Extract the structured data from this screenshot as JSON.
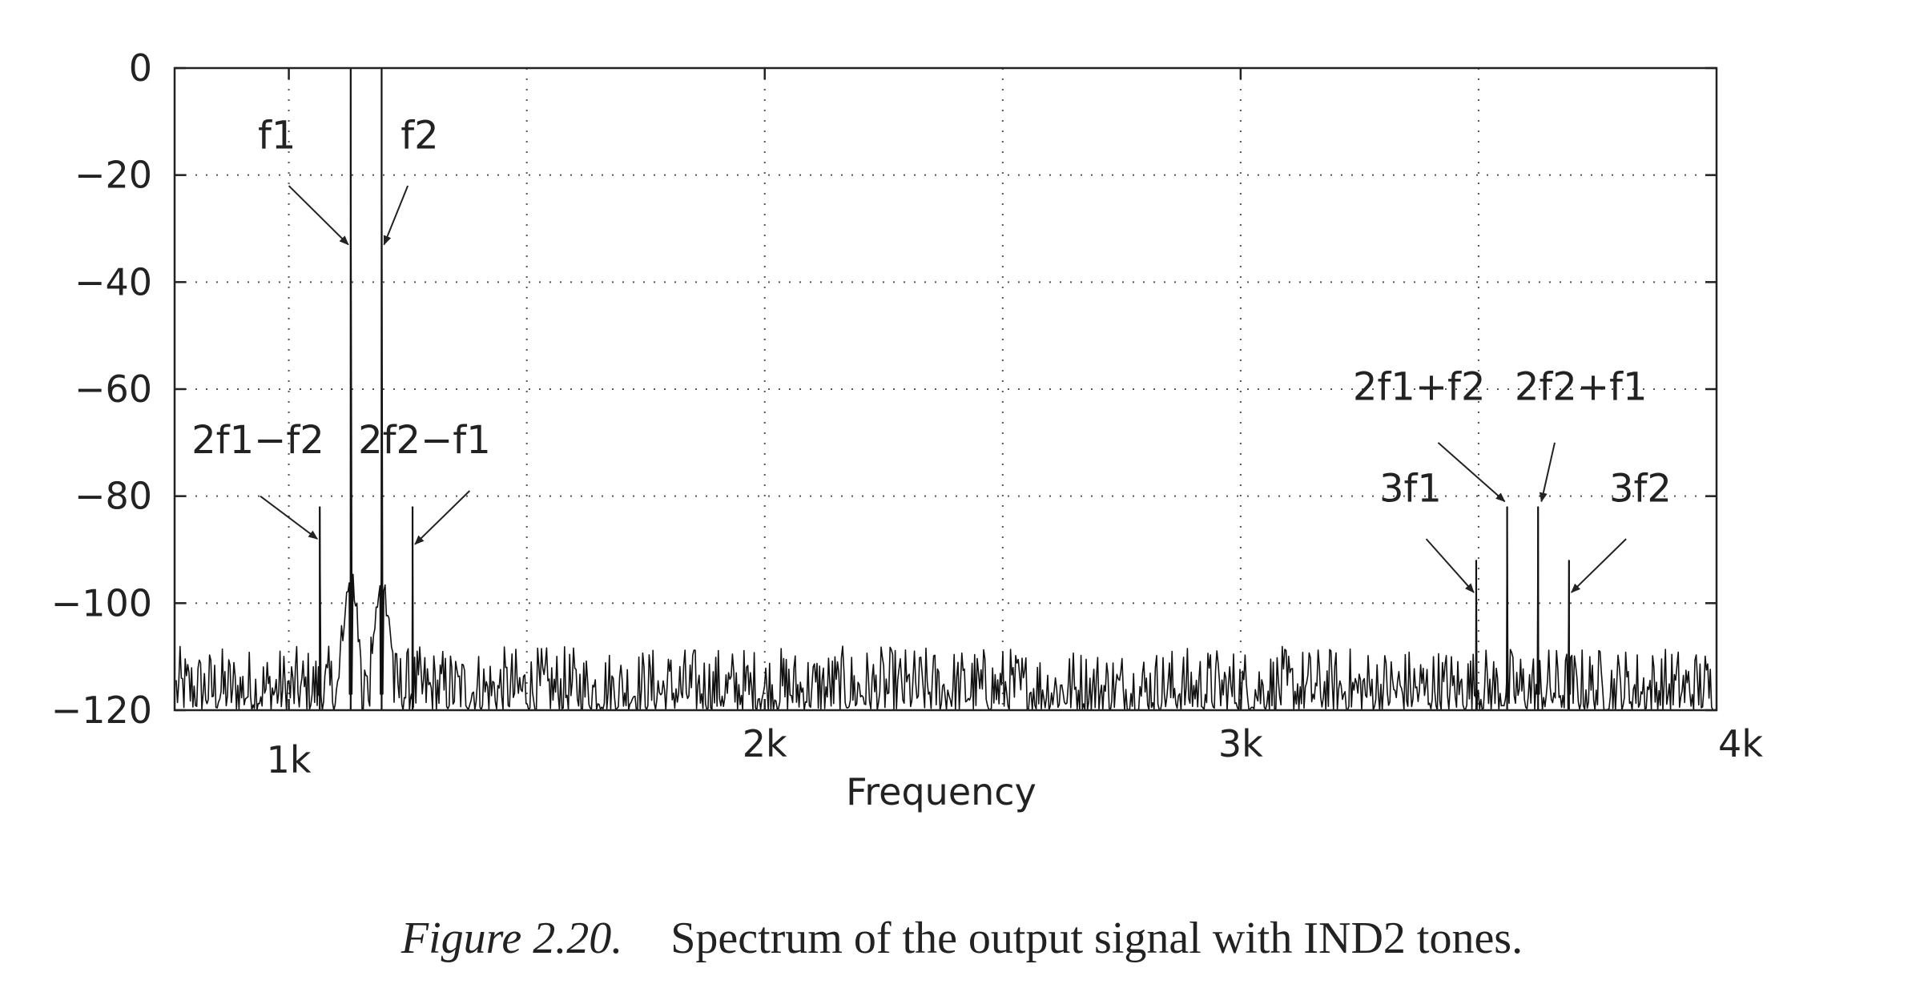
{
  "chart_data": {
    "type": "line",
    "xlabel": "Frequency",
    "ylabel": "",
    "title": "",
    "xlim": [
      760,
      4000
    ],
    "ylim": [
      -120,
      0
    ],
    "x_ticks": [
      {
        "value": 1000,
        "label": "1k"
      },
      {
        "value": 2000,
        "label": "2k"
      },
      {
        "value": 3000,
        "label": "3k"
      },
      {
        "value": 4000,
        "label": "4k"
      }
    ],
    "y_ticks": [
      {
        "value": 0,
        "label": "0"
      },
      {
        "value": -20,
        "label": "−20"
      },
      {
        "value": -40,
        "label": "−40"
      },
      {
        "value": -60,
        "label": "−60"
      },
      {
        "value": -80,
        "label": "−80"
      },
      {
        "value": -100,
        "label": "−100"
      },
      {
        "value": -120,
        "label": "−120"
      }
    ],
    "grid": true,
    "grid_x": [
      1000,
      1500,
      2000,
      2500,
      3000,
      3500
    ],
    "noise_floor_db": -120,
    "noise_peak_db": -108,
    "peaks": [
      {
        "label": "2f1−f2",
        "x": 1065,
        "y": -82
      },
      {
        "label": "f1",
        "x": 1130,
        "y": 0
      },
      {
        "label": "f2",
        "x": 1195,
        "y": 0
      },
      {
        "label": "2f2−f1",
        "x": 1260,
        "y": -82
      },
      {
        "label": "3f1",
        "x": 3495,
        "y": -92
      },
      {
        "label": "2f1+f2",
        "x": 3560,
        "y": -82
      },
      {
        "label": "2f2+f1",
        "x": 3625,
        "y": -82
      },
      {
        "label": "3f2",
        "x": 3690,
        "y": -92
      }
    ]
  },
  "annotations": [
    {
      "text": "f1",
      "tx": 975,
      "ty": -15,
      "ax": 1000,
      "ay": -22,
      "bx": 1125,
      "by": -33
    },
    {
      "text": "f2",
      "tx": 1275,
      "ty": -15,
      "ax": 1250,
      "ay": -22,
      "bx": 1200,
      "by": -33
    },
    {
      "text": "2f1−f2",
      "tx": 935,
      "ty": -72,
      "ax": 940,
      "ay": -80,
      "bx": 1060,
      "by": -88
    },
    {
      "text": "2f2−f1",
      "tx": 1285,
      "ty": -72,
      "ax": 1380,
      "ay": -79,
      "bx": 1265,
      "by": -89
    },
    {
      "text": "2f1+f2",
      "tx": 3375,
      "ty": -62,
      "ax": 3415,
      "ay": -70,
      "bx": 3555,
      "by": -81
    },
    {
      "text": "2f2+f1",
      "tx": 3715,
      "ty": -62,
      "ax": 3660,
      "ay": -70,
      "bx": 3632,
      "by": -81
    },
    {
      "text": "3f1",
      "tx": 3357,
      "ty": -81,
      "ax": 3390,
      "ay": -88,
      "bx": 3490,
      "by": -98
    },
    {
      "text": "3f2",
      "tx": 3840,
      "ty": -81,
      "ax": 3810,
      "ay": -88,
      "bx": 3695,
      "by": -98
    }
  ],
  "caption": {
    "figure_label": "Figure 2.20.",
    "text": "Spectrum of the output signal with IND2 tones."
  }
}
